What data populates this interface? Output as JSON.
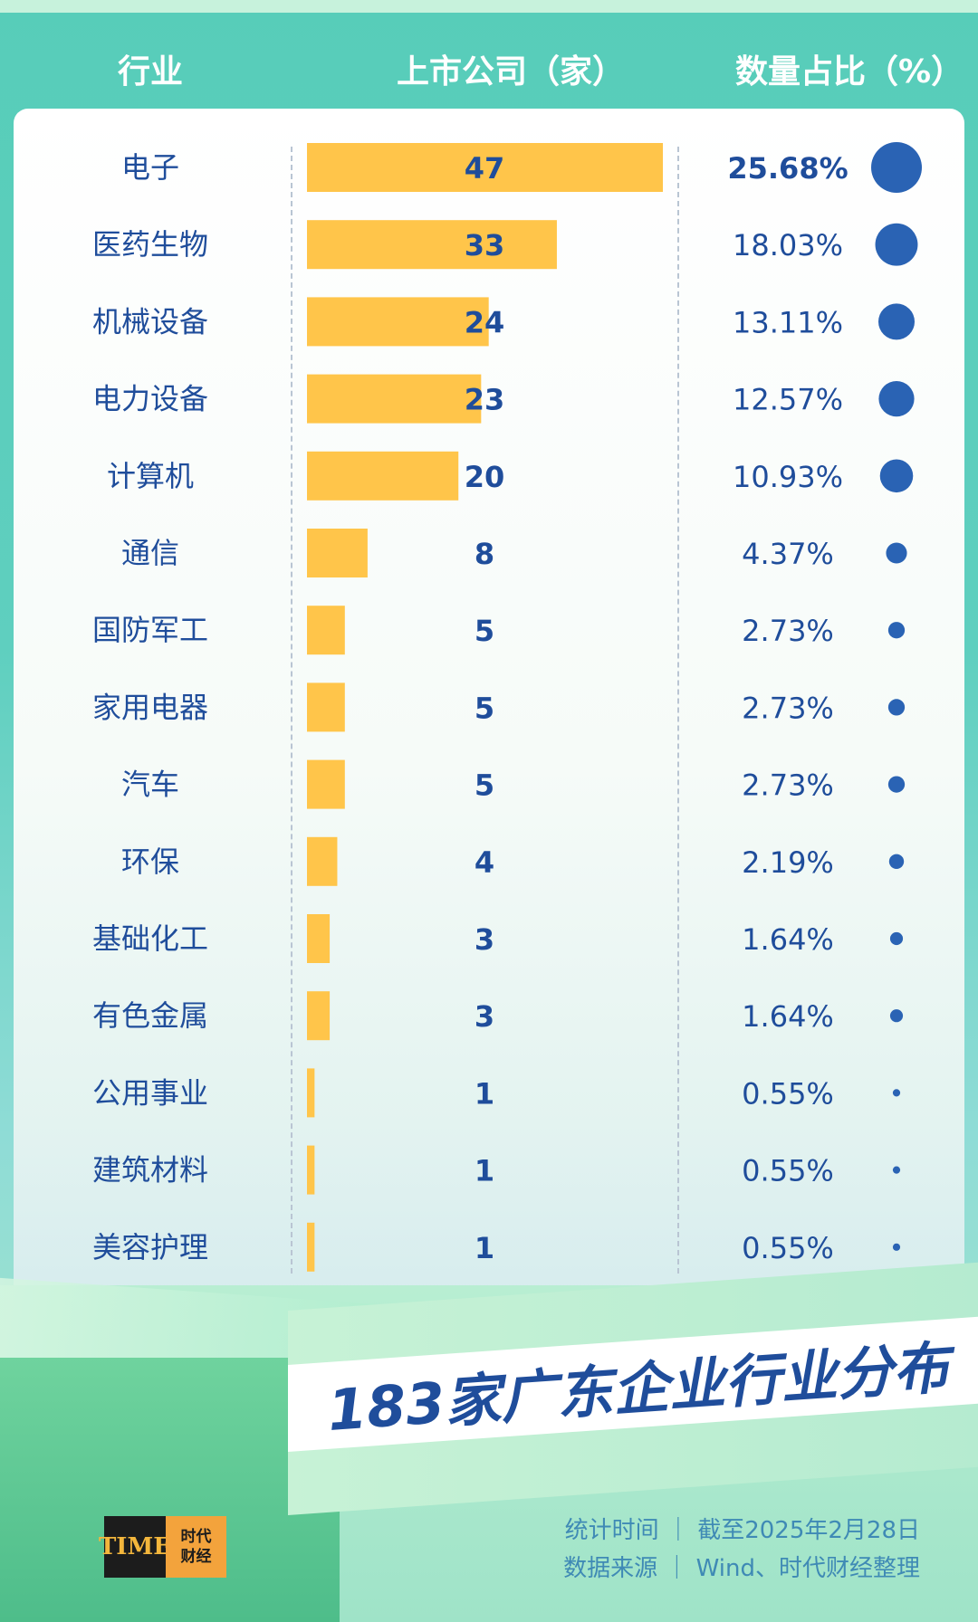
{
  "header": {
    "industry_label": "行业",
    "count_label": "上市公司（家）",
    "pct_label": "数量占比（%）"
  },
  "colors": {
    "bar": "#ffc54a",
    "dot": "#2a63b4",
    "text": "#1f4d9b"
  },
  "chart_data": {
    "type": "bar",
    "orientation": "horizontal",
    "categories": [
      "电子",
      "医药生物",
      "机械设备",
      "电力设备",
      "计算机",
      "通信",
      "国防军工",
      "家用电器",
      "汽车",
      "环保",
      "基础化工",
      "有色金属",
      "公用事业",
      "建筑材料",
      "美容护理"
    ],
    "values": [
      47,
      33,
      24,
      23,
      20,
      8,
      5,
      5,
      5,
      4,
      3,
      3,
      1,
      1,
      1
    ],
    "value_labels": [
      "47",
      "33",
      "24",
      "23",
      "20",
      "8",
      "5",
      "5",
      "5",
      "4",
      "3",
      "3",
      "1",
      "1",
      "1"
    ],
    "percent_values": [
      25.68,
      18.03,
      13.11,
      12.57,
      10.93,
      4.37,
      2.73,
      2.73,
      2.73,
      2.19,
      1.64,
      1.64,
      0.55,
      0.55,
      0.55
    ],
    "percent_labels": [
      "25.68%",
      "18.03%",
      "13.11%",
      "12.57%",
      "10.93%",
      "4.37%",
      "2.73%",
      "2.73%",
      "2.73%",
      "2.19%",
      "1.64%",
      "1.64%",
      "0.55%",
      "0.55%",
      "0.55%"
    ],
    "xlim": [
      0,
      47
    ],
    "title": "183家广东企业行业分布"
  },
  "footer": {
    "stat_time": "统计时间 ｜ 截至2025年2月28日",
    "source": "数据来源 ｜ Wind、时代财经整理"
  },
  "logo": {
    "mark": "TIME",
    "line1": "时代",
    "line2": "财经"
  }
}
